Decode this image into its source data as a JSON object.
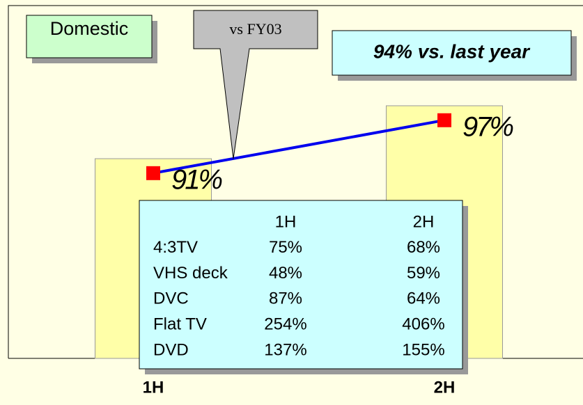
{
  "chart_data": {
    "type": "bar",
    "categories": [
      "1H",
      "2H"
    ],
    "ylim": [
      0,
      100
    ],
    "y2lim": [
      70,
      110
    ],
    "series": [
      {
        "type": "bar",
        "color": "#ffffa8",
        "values": [
          56.6,
          71.6
        ]
      },
      {
        "type": "line",
        "axis": "y2",
        "color": "#0000ee",
        "marker_color": "#ff0000",
        "values": [
          91,
          97
        ],
        "value_labels": [
          "91%",
          "97%"
        ]
      }
    ],
    "annotations": [
      "Domestic",
      "vs FY03",
      "94% vs. last year"
    ]
  },
  "table": {
    "columns": [
      "1H",
      "2H"
    ],
    "rows": [
      {
        "label": "4:3TV",
        "values": [
          "75%",
          "68%"
        ]
      },
      {
        "label": "VHS deck",
        "values": [
          "48%",
          "59%"
        ]
      },
      {
        "label": "DVC",
        "values": [
          "87%",
          "64%"
        ]
      },
      {
        "label": "Flat TV",
        "values": [
          "254%",
          "406%"
        ]
      },
      {
        "label": "DVD",
        "values": [
          "137%",
          "155%"
        ]
      }
    ]
  }
}
